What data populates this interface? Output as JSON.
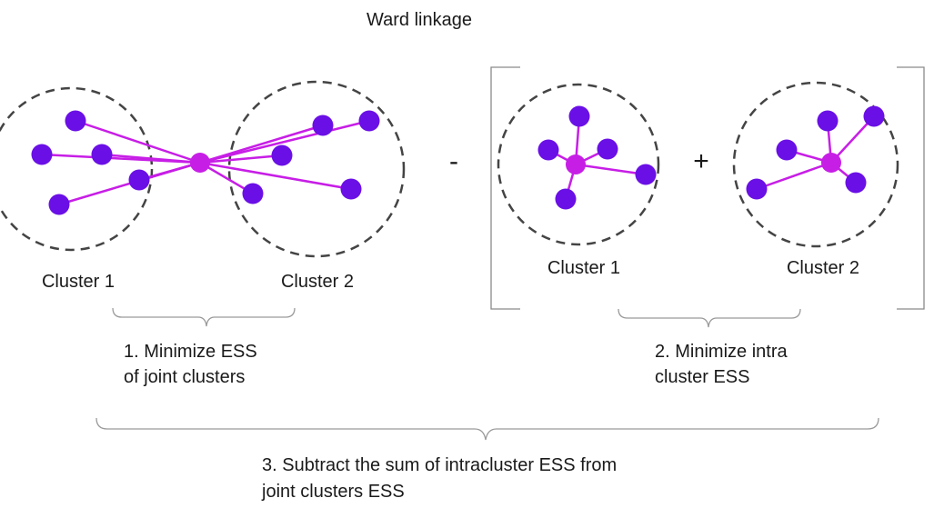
{
  "title": "Ward linkage",
  "joint": {
    "cluster1_label": "Cluster 1",
    "cluster2_label": "Cluster 2",
    "step_line1": "1. Minimize ESS",
    "step_line2": "of joint clusters"
  },
  "operators": {
    "minus": "-",
    "plus": "+"
  },
  "intra": {
    "cluster1_label": "Cluster 1",
    "cluster2_label": "Cluster 2",
    "step_line1": "2. Minimize intra",
    "step_line2": "cluster ESS"
  },
  "summary": {
    "line1": "3. Subtract the sum of intracluster ESS from",
    "line2": "joint clusters ESS"
  },
  "colors": {
    "point": "#6a0fe6",
    "centroid": "#c71ee6",
    "edge": "#c71ee6"
  }
}
